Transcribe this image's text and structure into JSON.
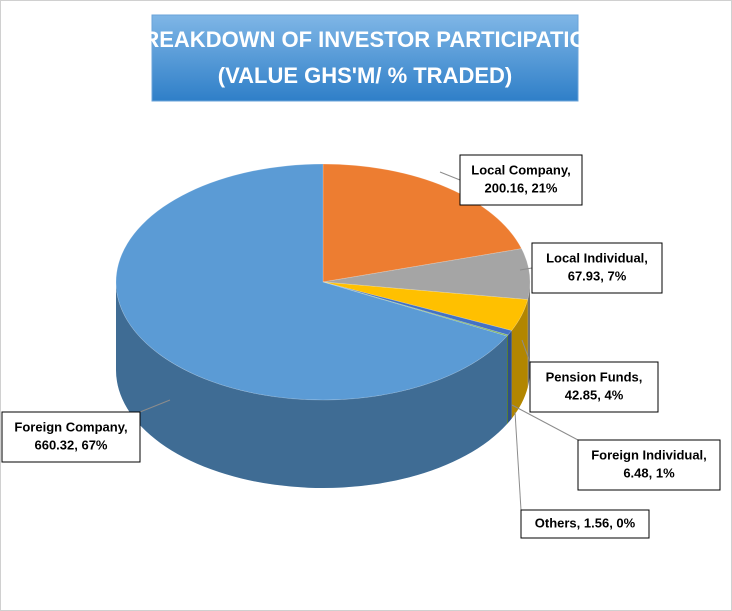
{
  "chart_data": {
    "type": "pie3d",
    "title": "BREAKDOWN OF INVESTOR PARTICIPATION",
    "subtitle": "(VALUE GHS'M/ % TRADED)",
    "values": [
      200.16,
      67.93,
      42.85,
      6.48,
      1.56,
      660.32
    ],
    "value_labels": [
      [
        "Local Company,",
        "200.16, 21%"
      ],
      [
        "Local Individual,",
        "67.93, 7%"
      ],
      [
        "Pension Funds,",
        "42.85, 4%"
      ],
      [
        "Foreign Individual,",
        "6.48, 1%"
      ],
      [
        "Others, 1.56, 0%"
      ],
      [
        "Foreign Company,",
        "660.32, 67%"
      ]
    ],
    "colors": [
      "#ED7D31",
      "#A5A5A5",
      "#FFC000",
      "#4472C4",
      "#70AD47",
      "#5B9BD5"
    ]
  }
}
